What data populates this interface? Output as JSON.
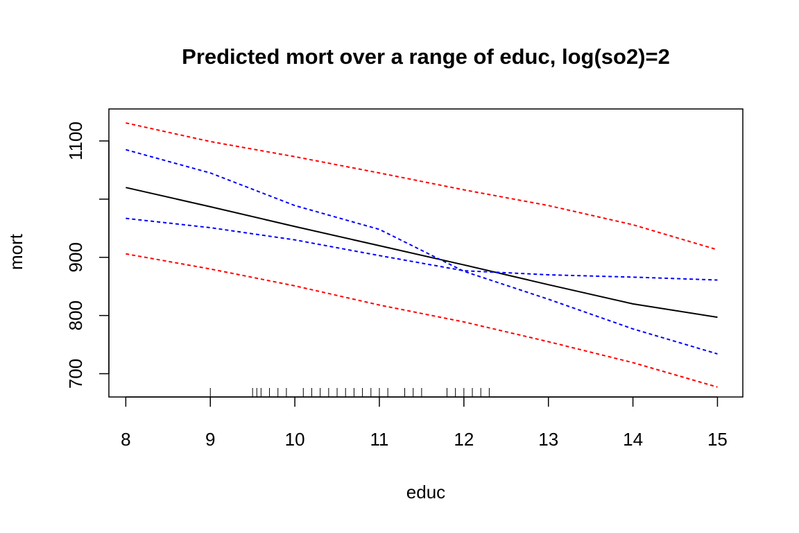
{
  "chart_data": {
    "type": "line",
    "title": "Predicted mort over a range of educ, log(so2)=2",
    "xlabel": "educ",
    "ylabel": "mort",
    "xlim": [
      7.8,
      15.3
    ],
    "ylim": [
      660,
      1155
    ],
    "x_ticks": [
      8,
      9,
      10,
      11,
      12,
      13,
      14,
      15
    ],
    "x_tick_labels": [
      "8",
      "9",
      "10",
      "11",
      "12",
      "13",
      "14",
      "15"
    ],
    "y_ticks": [
      700,
      800,
      900,
      1100
    ],
    "y_tick_labels": [
      "700",
      "800",
      "900",
      "1100"
    ],
    "y_minor_ticks": [
      1000
    ],
    "grid": false,
    "legend": "none",
    "x": [
      8,
      9,
      10,
      11,
      12,
      13,
      14,
      15
    ],
    "series": [
      {
        "values": [
          1020,
          987,
          953,
          920,
          887,
          853,
          820,
          797
        ],
        "color": "#000000",
        "dash": "solid"
      },
      {
        "values": [
          1085,
          1045,
          989,
          948,
          876,
          828,
          777,
          734
        ],
        "color": "#0000ff",
        "dash": "dashed"
      },
      {
        "values": [
          967,
          951,
          930,
          903,
          877,
          870,
          866,
          861
        ],
        "color": "#0000ff",
        "dash": "dashed"
      },
      {
        "values": [
          1131,
          1099,
          1073,
          1045,
          1016,
          989,
          956,
          913
        ],
        "color": "#ff0000",
        "dash": "dashed"
      },
      {
        "values": [
          906,
          880,
          851,
          818,
          789,
          755,
          719,
          677
        ],
        "color": "#ff0000",
        "dash": "dashed"
      }
    ],
    "rug": [
      9.0,
      9.5,
      9.55,
      9.6,
      9.7,
      9.8,
      9.9,
      10.1,
      10.2,
      10.3,
      10.4,
      10.5,
      10.6,
      10.7,
      10.8,
      10.9,
      11.0,
      11.1,
      11.3,
      11.4,
      11.5,
      11.8,
      11.9,
      12.0,
      12.1,
      12.2,
      12.3
    ]
  }
}
